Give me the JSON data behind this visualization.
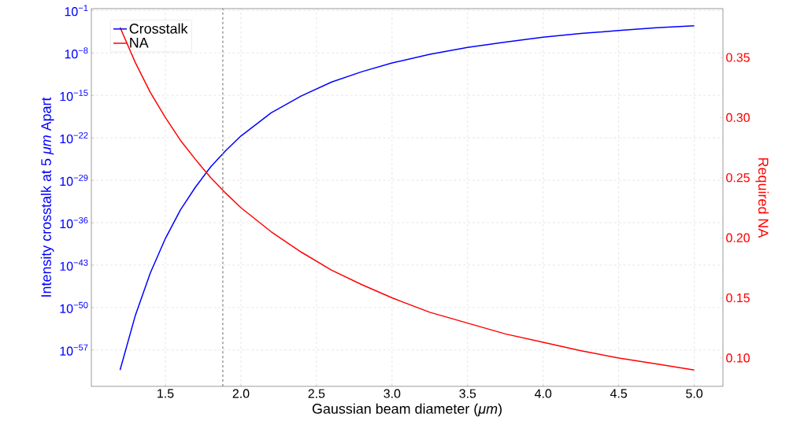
{
  "chart_data": {
    "type": "line",
    "xlabel": "Gaussian beam diameter (*μm*)",
    "ylabel": "Intensity crosstalk at 5 *μm* Apart",
    "y2label": "Required NA",
    "x": [
      1.2,
      1.3,
      1.4,
      1.5,
      1.6,
      1.7,
      1.8,
      1.9,
      2.0,
      2.2,
      2.4,
      2.6,
      2.8,
      3.0,
      3.25,
      3.5,
      3.75,
      4.0,
      4.25,
      4.5,
      4.75,
      5.0
    ],
    "series": [
      {
        "name": "Crosstalk",
        "color": "#0000ff",
        "values": [
          5e-61,
          4e-52,
          5e-45,
          2.5e-39,
          1.3e-34,
          8e-31,
          1.6e-27,
          8e-25,
          2e-22,
          1.3e-18,
          8e-16,
          1.6e-13,
          8e-12,
          2.2e-10,
          6e-09,
          8e-08,
          6e-07,
          4e-06,
          1.6e-05,
          5e-05,
          0.00014,
          0.0003
        ]
      },
      {
        "name": "NA",
        "color": "#ff0000",
        "axis": "y2",
        "values": [
          0.375,
          0.346,
          0.321,
          0.3,
          0.281,
          0.265,
          0.25,
          0.237,
          0.225,
          0.205,
          0.188,
          0.173,
          0.161,
          0.15,
          0.138,
          0.129,
          0.12,
          0.113,
          0.106,
          0.1,
          0.095,
          0.09
        ]
      }
    ],
    "log": "y",
    "xlim": [
      1.01,
      5.19
    ],
    "xticks": [
      1.5,
      {
        "value": 2.0,
        "label": "2.0"
      },
      2.5,
      {
        "value": 3.0,
        "label": "3.0"
      },
      3.5,
      {
        "value": 4.0,
        "label": "4.0"
      },
      4.5,
      {
        "value": 5.0,
        "label": "5.0"
      }
    ],
    "ylim": [
      1e-63,
      0.2
    ],
    "yticks": [
      {
        "value": 0.1,
        "label": "10$^{−1}$"
      },
      {
        "value": 1e-08,
        "label": "10$^{−8}$"
      },
      {
        "value": 1e-15,
        "label": "10$^{−15}$"
      },
      {
        "value": 1e-22,
        "label": "10$^{−22}$"
      },
      {
        "value": 1e-29,
        "label": "10$^{−29}$"
      },
      {
        "value": 1e-36,
        "label": "10$^{−36}$"
      },
      {
        "value": 1e-43,
        "label": "10$^{−43}$"
      },
      {
        "value": 1e-50,
        "label": "10$^{−50}$"
      },
      {
        "value": 1e-57,
        "label": "10$^{−57}$"
      }
    ],
    "y2lim": [
      0.0764,
      0.3906
    ],
    "y2ticks": [
      {
        "value": 0.1,
        "label": "0.10"
      },
      0.15,
      {
        "value": 0.2,
        "label": "0.20"
      },
      0.25,
      {
        "value": 0.3,
        "label": "0.30"
      },
      0.35
    ],
    "ref_lines": [
      {
        "axis": "x",
        "value": 1.88,
        "color": "#808080",
        "line_style": "dashed"
      }
    ],
    "grid": true,
    "legend": "top left",
    "marker": "none",
    "line_style": "solid"
  }
}
